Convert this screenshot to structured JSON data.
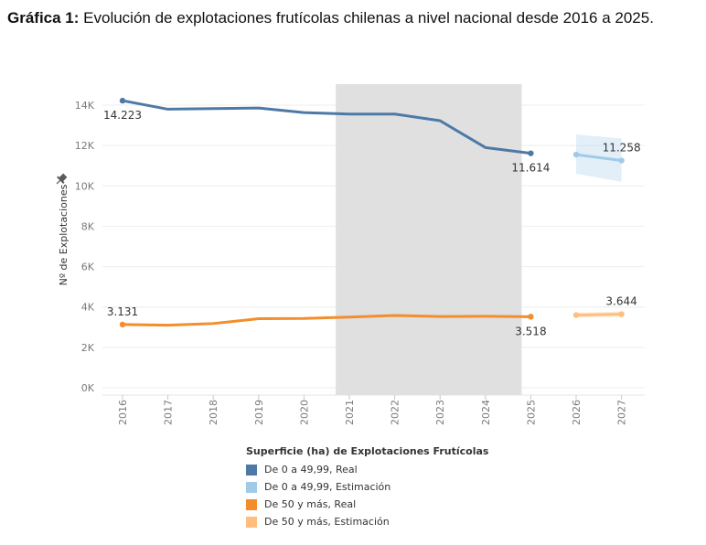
{
  "title": {
    "bold": "Gráfica 1:",
    "text": " Evolución de explotaciones frutícolas chilenas a nivel nacional desde 2016 a 2025."
  },
  "chart_data": {
    "type": "line",
    "title": "Evolución de explotaciones frutícolas chilenas a nivel nacional desde 2016 a 2025.",
    "ylabel": "Nº de Explotaciones",
    "xlabel": "",
    "ylim": [
      0,
      15000
    ],
    "yticks": [
      0,
      2000,
      4000,
      6000,
      8000,
      10000,
      12000,
      14000
    ],
    "ytick_labels": [
      "0K",
      "2K",
      "4K",
      "6K",
      "8K",
      "10K",
      "12K",
      "14K"
    ],
    "categories": [
      "2016",
      "2017",
      "2018",
      "2019",
      "2020",
      "2021",
      "2022",
      "2023",
      "2024",
      "2025",
      "2026",
      "2027"
    ],
    "shaded_band": {
      "from": 2020.7,
      "to": 2024.8,
      "color": "#e0e0e0"
    },
    "series": [
      {
        "name": "De 0 a 49,99, Real",
        "color": "#4e79a7",
        "x": [
          2016,
          2017,
          2018,
          2019,
          2020,
          2021,
          2022,
          2023,
          2024,
          2025
        ],
        "values": [
          14223,
          13800,
          13830,
          13860,
          13630,
          13560,
          13560,
          13230,
          11900,
          11614
        ]
      },
      {
        "name": "De 0 a 49,99, Estimación",
        "color": "#a0cbe8",
        "x": [
          2026,
          2027
        ],
        "values": [
          11550,
          11258
        ],
        "band_lower": [
          10600,
          10200
        ],
        "band_upper": [
          12550,
          12350
        ]
      },
      {
        "name": "De 50 y más, Real",
        "color": "#f28e2b",
        "x": [
          2016,
          2017,
          2018,
          2019,
          2020,
          2021,
          2022,
          2023,
          2024,
          2025
        ],
        "values": [
          3131,
          3100,
          3180,
          3420,
          3430,
          3500,
          3580,
          3530,
          3540,
          3518
        ]
      },
      {
        "name": "De 50 y más, Estimación",
        "color": "#ffbe7d",
        "x": [
          2026,
          2027
        ],
        "values": [
          3600,
          3644
        ],
        "band_lower": [
          3480,
          3520
        ],
        "band_upper": [
          3720,
          3770
        ]
      }
    ],
    "data_labels": [
      {
        "text": "14.223",
        "x": 2016,
        "y": 14223,
        "pos": "below"
      },
      {
        "text": "11.614",
        "x": 2025,
        "y": 11614,
        "pos": "below"
      },
      {
        "text": "11.258",
        "x": 2027,
        "y": 11258,
        "pos": "above"
      },
      {
        "text": "3.131",
        "x": 2016,
        "y": 3131,
        "pos": "above"
      },
      {
        "text": "3.518",
        "x": 2025,
        "y": 3518,
        "pos": "below"
      },
      {
        "text": "3.644",
        "x": 2027,
        "y": 3644,
        "pos": "above"
      }
    ],
    "legend": {
      "title": "Superficie (ha) de Explotaciones Frutícolas",
      "placement": "bottom"
    }
  }
}
